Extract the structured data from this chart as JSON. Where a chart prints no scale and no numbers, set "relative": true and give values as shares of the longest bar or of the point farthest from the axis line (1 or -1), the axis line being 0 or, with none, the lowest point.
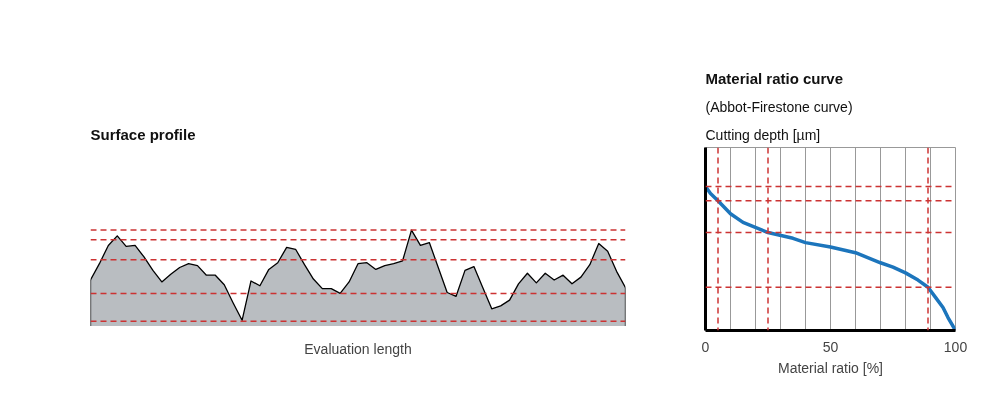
{
  "chart_data": [
    {
      "type": "area",
      "title": "Surface profile",
      "xlabel": "Evaluation length",
      "relative": true,
      "tick_labels": false,
      "grid": false,
      "categories": [
        null,
        null,
        null,
        null,
        null,
        null,
        null,
        null,
        null,
        null,
        null,
        null,
        null,
        null,
        null,
        null,
        null,
        null,
        null,
        null,
        null,
        null,
        null,
        null,
        null,
        null,
        null,
        null,
        null,
        null,
        null,
        null,
        null,
        null,
        null,
        null,
        null,
        null,
        null,
        null,
        null,
        null,
        null,
        null,
        null,
        null,
        null,
        null,
        null,
        null,
        null,
        null,
        null,
        null,
        null,
        null,
        null,
        null,
        null,
        null,
        null
      ],
      "series": [
        {
          "color": "#b9bdc1",
          "values": [
            0.48,
            0.65,
            0.84,
            0.94,
            0.83,
            0.84,
            0.72,
            0.58,
            0.46,
            0.54,
            0.61,
            0.65,
            0.63,
            0.53,
            0.53,
            0.43,
            0.24,
            0.06,
            0.47,
            0.42,
            0.59,
            0.66,
            0.82,
            0.8,
            0.64,
            0.49,
            0.39,
            0.39,
            0.34,
            0.46,
            0.65,
            0.66,
            0.59,
            0.63,
            0.65,
            0.68,
            1.0,
            0.84,
            0.87,
            0.61,
            0.35,
            0.31,
            0.58,
            0.62,
            0.4,
            0.18,
            0.21,
            0.27,
            0.44,
            0.55,
            0.45,
            0.55,
            0.48,
            0.53,
            0.44,
            0.51,
            0.64,
            0.86,
            0.78,
            0.57,
            0.4
          ]
        }
      ],
      "ref_lines": [
        {
          "axis": "y",
          "value": 1.0,
          "color": "#cc3333",
          "line_style": "dashed"
        },
        {
          "axis": "y",
          "value": 0.9,
          "color": "#cc3333",
          "line_style": "dashed"
        },
        {
          "axis": "y",
          "value": 0.69,
          "color": "#cc3333",
          "line_style": "dashed"
        },
        {
          "axis": "y",
          "value": 0.34,
          "color": "#cc3333",
          "line_style": "dashed"
        },
        {
          "axis": "y",
          "value": 0.05,
          "color": "#cc3333",
          "line_style": "dashed"
        }
      ]
    },
    {
      "type": "line",
      "title": "Material ratio curve",
      "subtitle": "(Abbot-Firestone curve)",
      "ylabel": "Cutting depth [µm]",
      "xlabel": "Material ratio [%]",
      "relative": true,
      "tick_labels": "x",
      "grid": "x",
      "marker": "none",
      "x": [
        0,
        2,
        5,
        10,
        15,
        25,
        35,
        40,
        50,
        60,
        70,
        75,
        80,
        85,
        89,
        92,
        95,
        97,
        100
      ],
      "xlim": [
        0,
        100
      ],
      "xticks": [
        0,
        {
          "value": 10,
          "label": null
        },
        {
          "value": 20,
          "label": null
        },
        {
          "value": 30,
          "label": null
        },
        {
          "value": 40,
          "label": null
        },
        50,
        {
          "value": 60,
          "label": null
        },
        {
          "value": 70,
          "label": null
        },
        {
          "value": 80,
          "label": null
        },
        {
          "value": 90,
          "label": null
        },
        100
      ],
      "series": [
        {
          "color": "#1c75bc",
          "values": [
            1.0,
            0.95,
            0.9,
            0.81,
            0.75,
            0.68,
            0.64,
            0.61,
            0.58,
            0.54,
            0.47,
            0.44,
            0.4,
            0.35,
            0.3,
            0.23,
            0.16,
            0.09,
            0.0
          ]
        }
      ],
      "ref_lines": [
        {
          "axis": "y",
          "value": 1.0,
          "color": "#cc3333",
          "line_style": "dashed"
        },
        {
          "axis": "y",
          "value": 0.9,
          "color": "#cc3333",
          "line_style": "dashed"
        },
        {
          "axis": "y",
          "value": 0.68,
          "color": "#cc3333",
          "line_style": "dashed"
        },
        {
          "axis": "y",
          "value": 0.3,
          "color": "#cc3333",
          "line_style": "dashed"
        },
        {
          "axis": "x",
          "value": 5,
          "color": "#cc3333",
          "line_style": "dashed"
        },
        {
          "axis": "x",
          "value": 25,
          "color": "#cc3333",
          "line_style": "dashed"
        },
        {
          "axis": "x",
          "value": 89,
          "color": "#cc3333",
          "line_style": "dashed"
        }
      ]
    }
  ]
}
